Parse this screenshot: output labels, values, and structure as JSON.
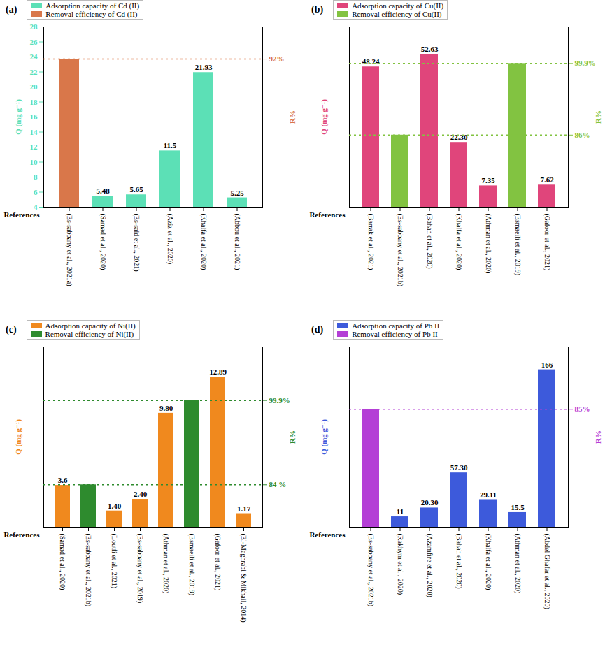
{
  "chart_data": [
    {
      "type": "bar",
      "title": "(a)",
      "xlabel": "References",
      "ylabel": "Q (mg g⁻¹)",
      "y2label": "R%",
      "categories": [
        "(Es-sabbany et al., 2021a)",
        "(Samad et al., 2020)",
        "(Es-said et al., 2021)",
        "(Aziz et al., 2020)",
        "(Khalfa et al., 2020)",
        "(Abbou et al., 2021)"
      ],
      "ylim": [
        4,
        28
      ],
      "yticks": [
        4,
        6,
        8,
        10,
        12,
        14,
        16,
        18,
        20,
        22,
        24,
        26,
        28
      ],
      "y2lim": [
        0,
        112
      ],
      "y2ticks": [
        {
          "value": 92,
          "label": "92%"
        }
      ],
      "grid": true,
      "series": [
        {
          "name": "Adsorption capacity of Cd (II)",
          "color": "#5ce0b6",
          "data_labels": true,
          "values": [
            null,
            5.48,
            5.65,
            11.5,
            21.93,
            5.25
          ]
        },
        {
          "name": "Removal efficiency of Cd (II)",
          "color": "#d9774a",
          "axis": "y2",
          "data_labels": false,
          "values": [
            92,
            null,
            null,
            null,
            null,
            null
          ]
        }
      ]
    },
    {
      "type": "bar",
      "title": "(b)",
      "xlabel": "References",
      "ylabel": "Q (mg g⁻¹)",
      "y2label": "R%",
      "categories": [
        "(Barrak et al., 2021)",
        "(Es-sabbany et al., 2021b)",
        "(Bahah et al., 2020)",
        "(Khalfa et al., 2020)",
        "(Athman et al., 2020)",
        "(Esmaeili et al., 2019)",
        "(Gafoor et al., 2021)"
      ],
      "ylim": [
        0,
        62
      ],
      "yticks": [],
      "y2lim": [
        72,
        107
      ],
      "y2ticks": [
        {
          "value": 86,
          "label": "86%"
        },
        {
          "value": 99.9,
          "label": "99.9%"
        }
      ],
      "grid": true,
      "series": [
        {
          "name": "Adsorption capacity of Cu(II)",
          "color": "#e0457b",
          "data_labels": true,
          "values": [
            48.24,
            null,
            52.63,
            22.3,
            7.35,
            null,
            7.62
          ],
          "value_labels": [
            "48.24",
            null,
            "52.63",
            "22.30",
            "7.35",
            null,
            "7.62"
          ]
        },
        {
          "name": "Removal efficiency of Cu(II)",
          "color": "#82c341",
          "axis": "y2",
          "data_labels": false,
          "values": [
            null,
            86,
            null,
            null,
            null,
            99.9,
            null
          ]
        }
      ]
    },
    {
      "type": "bar",
      "title": "(c)",
      "xlabel": "References",
      "ylabel": "Q (mg g⁻¹)",
      "y2label": "R%",
      "categories": [
        "(Samad et al., 2020)",
        "(Es-sabbany et al., 2021b)",
        "(Loutfi et al., 2021)",
        "(Es-sabbany et al., 2019)",
        "(Athman et al., 2020)",
        "(Esmaeili et al., 2019)",
        "(Gafoor et al., 2021)",
        "(El-Maghrabi & Mikhail, 2014)"
      ],
      "ylim": [
        0,
        15.5
      ],
      "yticks": [],
      "y2lim": [
        76,
        110
      ],
      "y2ticks": [
        {
          "value": 84,
          "label": "84 %"
        },
        {
          "value": 99.9,
          "label": "99.9%"
        }
      ],
      "grid": true,
      "series": [
        {
          "name": "Adsorption capacity of Ni(II)",
          "color": "#f0891e",
          "data_labels": true,
          "values": [
            3.6,
            null,
            1.4,
            2.4,
            9.8,
            null,
            12.89,
            1.17
          ],
          "value_labels": [
            "3.6",
            null,
            "1.40",
            "2.40",
            "9.80",
            null,
            "12.89",
            "1.17"
          ]
        },
        {
          "name": "Removal efficiency of Ni(II)",
          "color": "#2e8b2e",
          "axis": "y2",
          "data_labels": false,
          "values": [
            null,
            84,
            null,
            null,
            null,
            99.9,
            null,
            null
          ]
        }
      ]
    },
    {
      "type": "bar",
      "title": "(d)",
      "xlabel": "References",
      "ylabel": "Q (mg g⁻¹)",
      "y2label": "R%",
      "categories": [
        "(Es-sabbany et al., 2021b)",
        "(Rakhym et al., 2020)",
        "(Azamfire et al., 2020)",
        "(Bahah et al., 2020)",
        "(Khalfa et al., 2020)",
        "(Athman et al., 2020)",
        "(Abdel Ghafar et al., 2020)"
      ],
      "ylim": [
        0,
        190
      ],
      "yticks": [],
      "y2lim": [
        0,
        130
      ],
      "y2ticks": [
        {
          "value": 85,
          "label": "85%"
        }
      ],
      "grid": true,
      "series": [
        {
          "name": "Adsorption capacity of Pb II",
          "color": "#3d5adb",
          "data_labels": true,
          "values": [
            null,
            11,
            20.3,
            57.3,
            29.11,
            15.5,
            166
          ],
          "value_labels": [
            null,
            "11",
            "20.30",
            "57.30",
            "29.11",
            "15.5",
            "166"
          ]
        },
        {
          "name": "Removal efficiency of Pb II",
          "color": "#b43fd6",
          "axis": "y2",
          "data_labels": false,
          "values": [
            85,
            null,
            null,
            null,
            null,
            null,
            null
          ]
        }
      ]
    }
  ]
}
